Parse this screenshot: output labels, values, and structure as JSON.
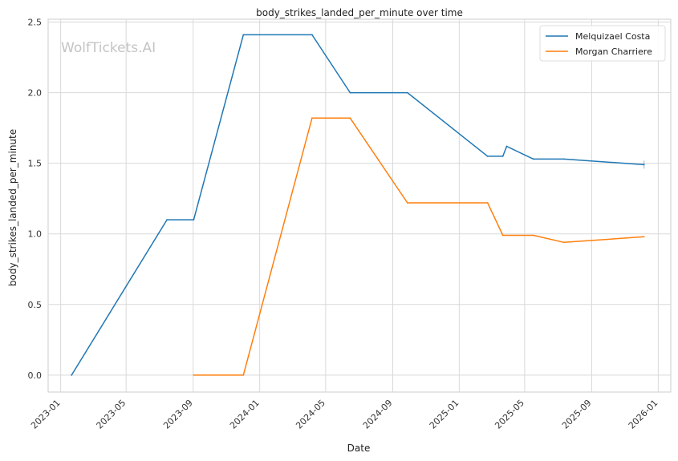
{
  "watermark": "WolfTickets.AI",
  "chart_data": {
    "type": "line",
    "title": "body_strikes_landed_per_minute over time",
    "xlabel": "Date",
    "ylabel": "body_strikes_landed_per_minute",
    "x_ticks": [
      "2023-01",
      "2023-05",
      "2023-09",
      "2024-01",
      "2024-05",
      "2024-09",
      "2025-01",
      "2025-05",
      "2025-09",
      "2026-01"
    ],
    "y_ticks": [
      "0.0",
      "0.5",
      "1.0",
      "1.5",
      "2.0",
      "2.5"
    ],
    "xlim": [
      "2022-12-09",
      "2026-01-24"
    ],
    "ylim": [
      -0.12,
      2.52
    ],
    "grid": true,
    "legend_position": "top-right",
    "series": [
      {
        "name": "Melquizael Costa",
        "color": "#1f77b4",
        "points": [
          {
            "x": "2023-01-21",
            "y": 0.0
          },
          {
            "x": "2023-07-15",
            "y": 1.1
          },
          {
            "x": "2023-09-02",
            "y": 1.1
          },
          {
            "x": "2023-12-02",
            "y": 2.41
          },
          {
            "x": "2024-04-06",
            "y": 2.41
          },
          {
            "x": "2024-06-15",
            "y": 2.0
          },
          {
            "x": "2024-09-28",
            "y": 2.0
          },
          {
            "x": "2025-02-22",
            "y": 1.55
          },
          {
            "x": "2025-03-22",
            "y": 1.55
          },
          {
            "x": "2025-03-29",
            "y": 1.62
          },
          {
            "x": "2025-05-17",
            "y": 1.53
          },
          {
            "x": "2025-07-12",
            "y": 1.53
          },
          {
            "x": "2025-12-06",
            "y": 1.49
          }
        ]
      },
      {
        "name": "Morgan Charriere",
        "color": "#ff7f0e",
        "points": [
          {
            "x": "2023-09-02",
            "y": 0.0
          },
          {
            "x": "2023-12-02",
            "y": 0.0
          },
          {
            "x": "2024-04-06",
            "y": 1.82
          },
          {
            "x": "2024-06-15",
            "y": 1.82
          },
          {
            "x": "2024-09-28",
            "y": 1.22
          },
          {
            "x": "2025-02-22",
            "y": 1.22
          },
          {
            "x": "2025-03-22",
            "y": 0.99
          },
          {
            "x": "2025-05-17",
            "y": 0.99
          },
          {
            "x": "2025-07-12",
            "y": 0.94
          },
          {
            "x": "2025-12-06",
            "y": 0.98
          }
        ]
      }
    ]
  }
}
